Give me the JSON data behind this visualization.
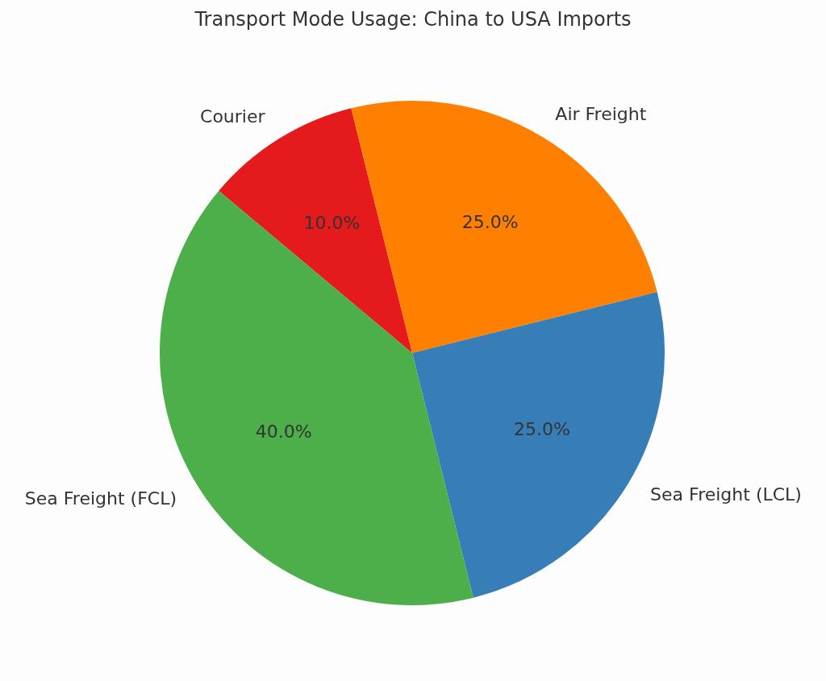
{
  "chart_data": {
    "type": "pie",
    "title": "Transport Mode Usage: China to USA Imports",
    "categories": [
      "Courier",
      "Air Freight",
      "Sea Freight (LCL)",
      "Sea Freight (FCL)"
    ],
    "values": [
      10,
      25,
      25,
      40
    ],
    "colors": [
      "#e41a1c",
      "#ff7f00",
      "#377eb8",
      "#4daf4a"
    ],
    "value_labels": [
      "10.0%",
      "25.0%",
      "25.0%",
      "40.0%"
    ],
    "legend": false
  }
}
